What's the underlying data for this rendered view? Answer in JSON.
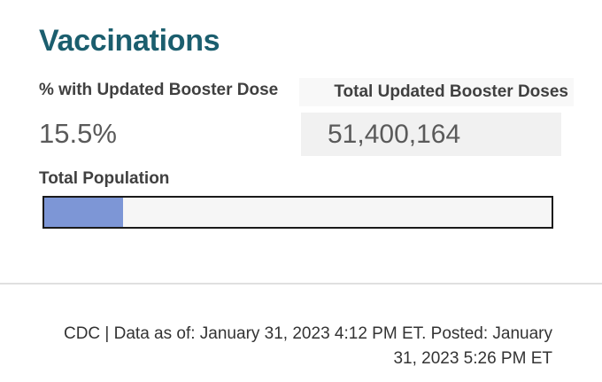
{
  "widget": {
    "title": "Vaccinations"
  },
  "stats": {
    "percent": {
      "header": "% with Updated Booster Dose",
      "value": "15.5%"
    },
    "total": {
      "header": "Total Updated Booster Doses",
      "value": "51,400,164"
    }
  },
  "population": {
    "label": "Total Population"
  },
  "footer": {
    "text": "CDC | Data as of: January 31, 2023 4:12 PM ET. Posted: January 31, 2023 5:26 PM ET"
  },
  "colors": {
    "title_teal": "#1b5e6e",
    "bar_fill_blue": "#7d96d6",
    "bar_border": "#1a1a1a",
    "bar_track": "#f6f6f6",
    "value_box_bg": "#f1f1f1",
    "header_box_bg": "#f8f8f8",
    "divider": "#e0e0e0"
  },
  "chart_data": {
    "type": "bar",
    "title": "Total Population",
    "categories": [
      "% with Updated Booster Dose"
    ],
    "values": [
      15.5
    ],
    "xlim": [
      0,
      100
    ],
    "unit": "%",
    "grid": false,
    "legend": false
  }
}
